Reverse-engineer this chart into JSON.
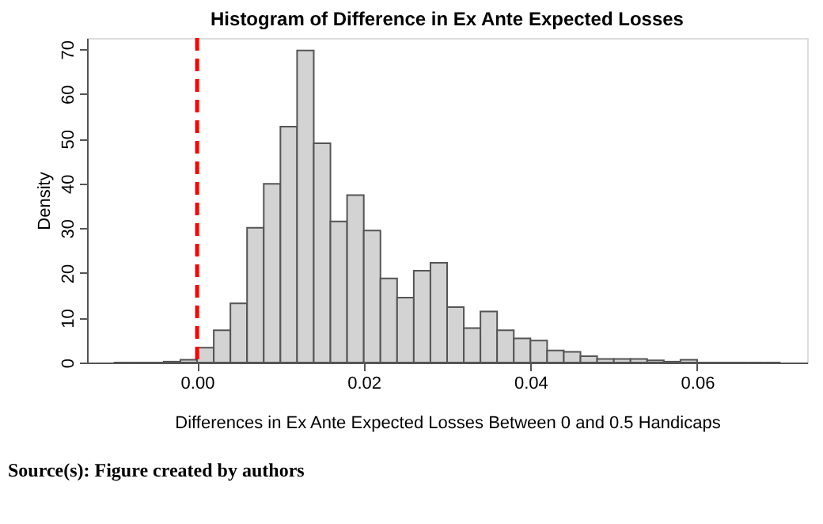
{
  "chart_data": {
    "type": "histogram",
    "title": "Histogram of Difference in Ex Ante Expected Losses",
    "xlabel": "Differences in Ex Ante Expected Losses Between 0 and 0.5 Handicaps",
    "ylabel": "Density",
    "bins": [
      -0.01,
      -0.008,
      -0.006,
      -0.004,
      -0.002,
      0.0,
      0.002,
      0.004,
      0.006,
      0.008,
      0.01,
      0.012,
      0.014,
      0.016,
      0.018,
      0.02,
      0.022,
      0.024,
      0.026,
      0.028,
      0.03,
      0.032,
      0.034,
      0.036,
      0.038,
      0.04,
      0.042,
      0.044,
      0.046,
      0.048,
      0.05,
      0.052,
      0.054,
      0.056,
      0.058,
      0.06,
      0.062,
      0.064,
      0.066,
      0.068,
      0.07
    ],
    "values": [
      0,
      0,
      0,
      0.2,
      0.6,
      3.3,
      7.2,
      13.2,
      30.1,
      39.9,
      52.7,
      69.7,
      49.0,
      31.5,
      37.4,
      29.5,
      18.8,
      14.5,
      20.5,
      22.3,
      12.4,
      7.7,
      11.4,
      7.2,
      5.4,
      4.9,
      2.7,
      2.4,
      1.4,
      0.8,
      0.8,
      0.8,
      0.5,
      0.2,
      0.6,
      0,
      0,
      0,
      0,
      0
    ],
    "color": "#d3d3d3",
    "xlim": [
      -0.0132,
      0.0732
    ],
    "xticks": [
      {
        "value": 0,
        "label": "0.00"
      },
      {
        "value": 0.02,
        "label": "0.02"
      },
      {
        "value": 0.04,
        "label": "0.04"
      },
      {
        "value": 0.06,
        "label": "0.06"
      }
    ],
    "ylim": [
      0,
      72.5
    ],
    "yticks": [
      0,
      10,
      20,
      30,
      40,
      50,
      60,
      70
    ],
    "grid": false,
    "ref_lines": [
      {
        "axis": "x",
        "value": 0,
        "label": null,
        "color": "#ff0000",
        "line_style": "dashed"
      }
    ],
    "annotations": [
      "Source(s): Figure created by authors"
    ]
  }
}
